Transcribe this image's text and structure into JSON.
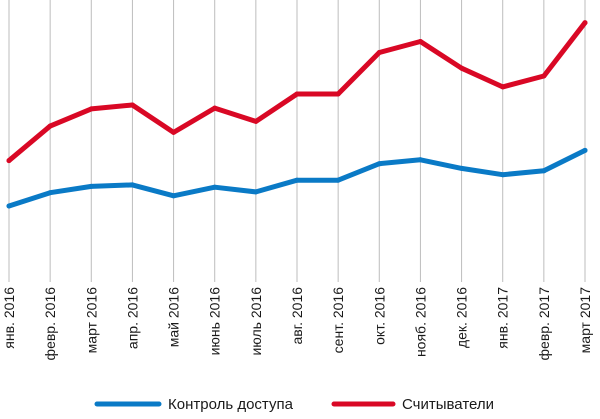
{
  "chart_data": {
    "type": "line",
    "categories": [
      "янв. 2016",
      "февр. 2016",
      "март 2016",
      "апр. 2016",
      "май 2016",
      "июнь 2016",
      "июль 2016",
      "авг. 2016",
      "сент. 2016",
      "окт. 2016",
      "нояб. 2016",
      "дек. 2016",
      "янв. 2017",
      "февр. 2017",
      "март 2017"
    ],
    "series": [
      {
        "name": "Контроль доступа",
        "color": "#0a7ac6",
        "values": [
          0.97,
          1.14,
          1.22,
          1.24,
          1.1,
          1.21,
          1.15,
          1.3,
          1.3,
          1.51,
          1.56,
          1.45,
          1.37,
          1.42,
          1.68
        ]
      },
      {
        "name": "Считыватели",
        "color": "#d90825",
        "values": [
          1.55,
          1.99,
          2.21,
          2.26,
          1.91,
          2.22,
          2.05,
          2.4,
          2.4,
          2.93,
          3.07,
          2.73,
          2.49,
          2.63,
          3.31
        ]
      }
    ],
    "ylim": [
      0,
      3.6
    ],
    "y_axis_labels": "none",
    "grid": "vertical",
    "legend": "bottom"
  }
}
